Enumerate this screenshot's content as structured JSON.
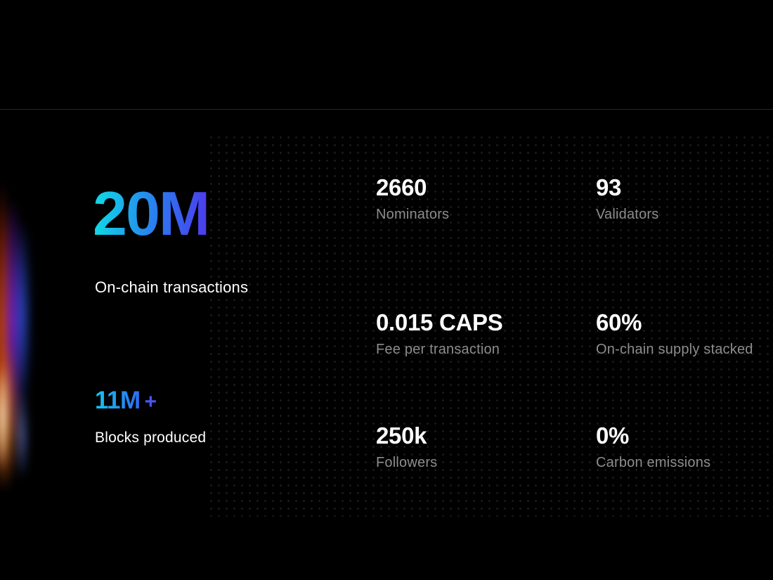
{
  "theme": {
    "background": "#000000",
    "accent_gradient_start": "#10d6e6",
    "accent_gradient_end": "#4b3fee",
    "label_color": "#8d8d8d",
    "divider_color": "#262626"
  },
  "hero": {
    "main_stat": {
      "value": "20M",
      "label": "On-chain transactions"
    },
    "secondary_stat": {
      "value": "11M",
      "suffix": "+",
      "label": "Blocks produced"
    }
  },
  "stats": [
    {
      "value": "2660",
      "label": "Nominators"
    },
    {
      "value": "93",
      "label": "Validators"
    },
    {
      "value": "0.015 CAPS",
      "label": "Fee per transaction"
    },
    {
      "value": "60%",
      "label": "On-chain supply stacked"
    },
    {
      "value": "250k",
      "label": "Followers"
    },
    {
      "value": "0%",
      "label": "Carbon emissions"
    }
  ]
}
